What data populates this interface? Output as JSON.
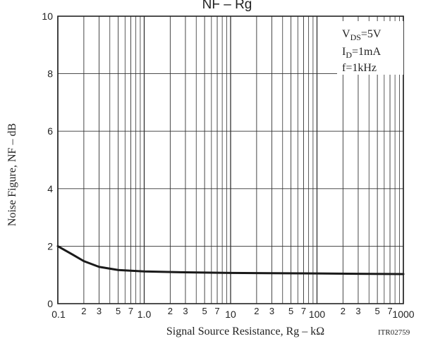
{
  "chart_data": {
    "type": "line",
    "title": "NF  –  Rg",
    "xlabel": "Signal Source Resistance, Rg  –  kΩ",
    "ylabel": "Noise Figure, NF  –  dB",
    "x_scale": "log",
    "xlim": [
      0.1,
      1000
    ],
    "ylim": [
      0,
      10
    ],
    "y_ticks": [
      {
        "value": 0,
        "label": "0"
      },
      {
        "value": 2,
        "label": "2"
      },
      {
        "value": 4,
        "label": "4"
      },
      {
        "value": 6,
        "label": "6"
      },
      {
        "value": 8,
        "label": "8"
      },
      {
        "value": 10,
        "label": "10"
      }
    ],
    "x_ticks": [
      {
        "value": 0.1,
        "label": "0.1",
        "major": true
      },
      {
        "value": 0.2,
        "label": "2",
        "major": false
      },
      {
        "value": 0.3,
        "label": "3",
        "major": false
      },
      {
        "value": 0.5,
        "label": "5",
        "major": false
      },
      {
        "value": 0.7,
        "label": "7",
        "major": false
      },
      {
        "value": 1,
        "label": "1.0",
        "major": true
      },
      {
        "value": 2,
        "label": "2",
        "major": false
      },
      {
        "value": 3,
        "label": "3",
        "major": false
      },
      {
        "value": 5,
        "label": "5",
        "major": false
      },
      {
        "value": 7,
        "label": "7",
        "major": false
      },
      {
        "value": 10,
        "label": "10",
        "major": true
      },
      {
        "value": 20,
        "label": "2",
        "major": false
      },
      {
        "value": 30,
        "label": "3",
        "major": false
      },
      {
        "value": 50,
        "label": "5",
        "major": false
      },
      {
        "value": 70,
        "label": "7",
        "major": false
      },
      {
        "value": 100,
        "label": "100",
        "major": true
      },
      {
        "value": 200,
        "label": "2",
        "major": false
      },
      {
        "value": 300,
        "label": "3",
        "major": false
      },
      {
        "value": 500,
        "label": "5",
        "major": false
      },
      {
        "value": 700,
        "label": "7",
        "major": false
      },
      {
        "value": 1000,
        "label": "1000",
        "major": true
      }
    ],
    "minor_gridlines_x": [
      0.4,
      0.6,
      0.8,
      0.9,
      4,
      6,
      8,
      9,
      40,
      60,
      80,
      90,
      400,
      600,
      800,
      900
    ],
    "series": [
      {
        "x": [
          0.1,
          0.15,
          0.2,
          0.3,
          0.5,
          1,
          3,
          10,
          30,
          100,
          300,
          1000
        ],
        "y": [
          2.0,
          1.7,
          1.48,
          1.28,
          1.17,
          1.12,
          1.09,
          1.07,
          1.06,
          1.05,
          1.04,
          1.03
        ]
      }
    ],
    "conditions": {
      "vds": {
        "main": "V",
        "sub": "DS",
        "rest": "=5V"
      },
      "id": {
        "main": "I",
        "sub": "D",
        "rest": "=1mA"
      },
      "f": "f=1kHz"
    },
    "code": "ITR02759",
    "grid": true,
    "colors": {
      "line": "#1a1a1a",
      "grid": "#333333",
      "text": "#222222"
    }
  }
}
